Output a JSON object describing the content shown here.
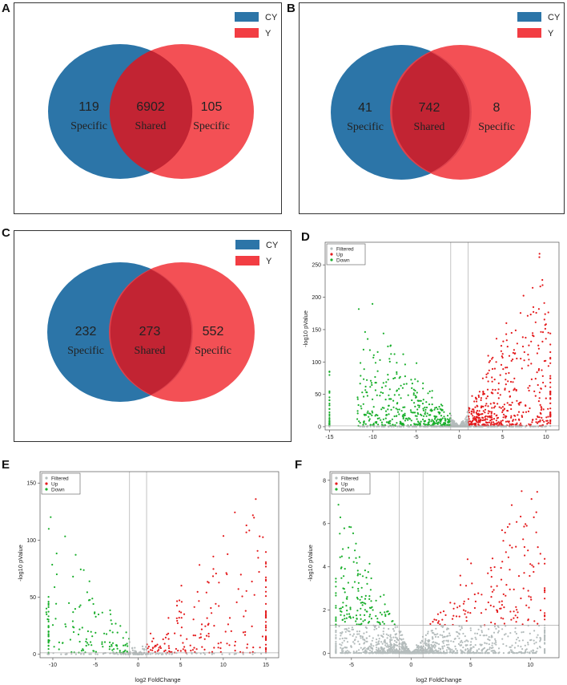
{
  "figure": {
    "panels": {
      "A": "A",
      "B": "B",
      "C": "C",
      "D": "D",
      "E": "E",
      "F": "F"
    },
    "colors": {
      "cy": "#2c75a8",
      "y": "#f23d43",
      "overlap": "#c22433",
      "up": "#e41a1c",
      "down": "#1aaf2c",
      "filtered": "#b4bcbc"
    }
  },
  "chart_data": [
    {
      "panel": "A",
      "type": "venn",
      "legend": [
        "CY",
        "Y"
      ],
      "left": {
        "value": "119",
        "label": "Specific"
      },
      "shared": {
        "value": "6902",
        "label": "Shared"
      },
      "right": {
        "value": "105",
        "label": "Specific"
      }
    },
    {
      "panel": "B",
      "type": "venn",
      "legend": [
        "CY",
        "Y"
      ],
      "left": {
        "value": "41",
        "label": "Specific"
      },
      "shared": {
        "value": "742",
        "label": "Shared"
      },
      "right": {
        "value": "8",
        "label": "Specific"
      }
    },
    {
      "panel": "C",
      "type": "venn",
      "legend": [
        "CY",
        "Y"
      ],
      "left": {
        "value": "232",
        "label": "Specific"
      },
      "shared": {
        "value": "273",
        "label": "Shared"
      },
      "right": {
        "value": "552",
        "label": "Specific"
      }
    },
    {
      "panel": "D",
      "type": "scatter",
      "legend": [
        "Filtered",
        "Up",
        "Down"
      ],
      "xlabel": "",
      "ylabel": "-log10 pValue",
      "xlim": [
        -15.5,
        11.5
      ],
      "ylim": [
        -5,
        285
      ],
      "xticks": [
        -15,
        -10,
        -5,
        0,
        5,
        10
      ],
      "yticks": [
        0,
        50,
        100,
        150,
        200,
        250
      ],
      "fc_cut": 1,
      "p_cut": 1.3,
      "seed": 11,
      "shape": {
        "down": [
          -12,
          -1,
          190
        ],
        "up": [
          1,
          10.5,
          280
        ],
        "npts": 1400,
        "left_edge": -15,
        "right_edge": 10.5
      }
    },
    {
      "panel": "E",
      "type": "scatter",
      "legend": [
        "Filtered",
        "Up",
        "Down"
      ],
      "xlabel": "log2 FoldChange",
      "ylabel": "-log10 pValue",
      "xlim": [
        -11.5,
        16.5
      ],
      "ylim": [
        -3,
        160
      ],
      "xticks": [
        -10,
        -5,
        0,
        5,
        10,
        15
      ],
      "yticks": [
        0,
        50,
        100,
        150
      ],
      "fc_cut": 1,
      "p_cut": 1.3,
      "seed": 23,
      "shape": {
        "down": [
          -11,
          -1,
          145
        ],
        "up": [
          1,
          15,
          158
        ],
        "npts": 450,
        "left_edge": -10.5,
        "right_edge": 15
      }
    },
    {
      "panel": "F",
      "type": "scatter",
      "legend": [
        "Filtered",
        "Up",
        "Down"
      ],
      "xlabel": "log2 FoldChange",
      "ylabel": "-log10 pValue",
      "xlim": [
        -6.8,
        12.4
      ],
      "ylim": [
        -0.2,
        8.4
      ],
      "xticks": [
        -5,
        0,
        5,
        10
      ],
      "yticks": [
        0,
        2,
        4,
        6,
        8
      ],
      "fc_cut": 1,
      "p_cut": 1.3,
      "seed": 37,
      "shape": {
        "down": [
          -6.3,
          -1,
          6.5
        ],
        "up": [
          1,
          11.2,
          8.3
        ],
        "npts": 1600,
        "left_edge": -6.3,
        "right_edge": 11.2
      }
    }
  ]
}
